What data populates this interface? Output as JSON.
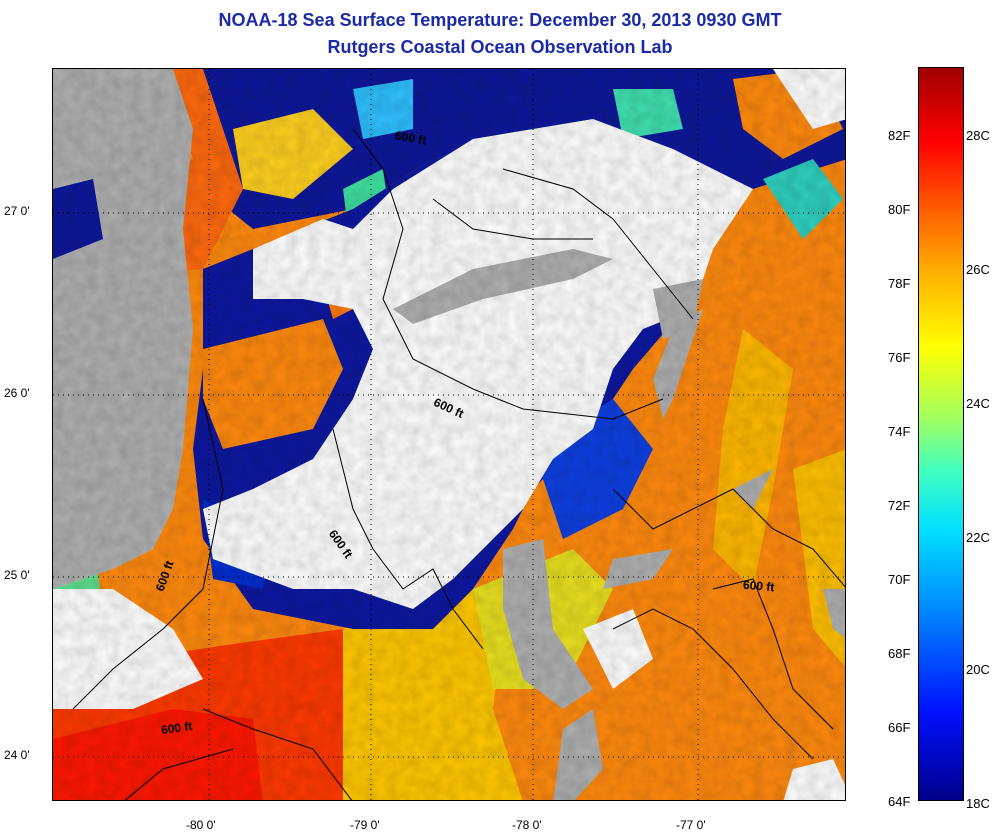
{
  "header": {
    "title": "NOAA-18 Sea Surface Temperature:  December 30, 2013 0930 GMT",
    "subtitle": "Rutgers Coastal Ocean Observation Lab"
  },
  "map": {
    "lat_labels": [
      "27 0'",
      "26 0'",
      "25 0'",
      "24 0'"
    ],
    "lon_labels": [
      "-80 0'",
      "-79 0'",
      "-78 0'",
      "-77 0'"
    ],
    "contour_labels": [
      "600 ft",
      "600 ft",
      "600 ft",
      "600 ft",
      "600 ft",
      "600 ft"
    ]
  },
  "colorbar": {
    "fahrenheit_labels": [
      "82F",
      "80F",
      "78F",
      "76F",
      "74F",
      "72F",
      "70F",
      "68F",
      "66F",
      "64F"
    ],
    "celsius_labels": [
      "28C",
      "26C",
      "24C",
      "22C",
      "20C",
      "18C"
    ],
    "colors": [
      "#00008a",
      "#0010ff",
      "#0080ff",
      "#00e0ff",
      "#a0ff60",
      "#ffff00",
      "#ffb000",
      "#ff5000",
      "#ff0000",
      "#a00000"
    ]
  }
}
